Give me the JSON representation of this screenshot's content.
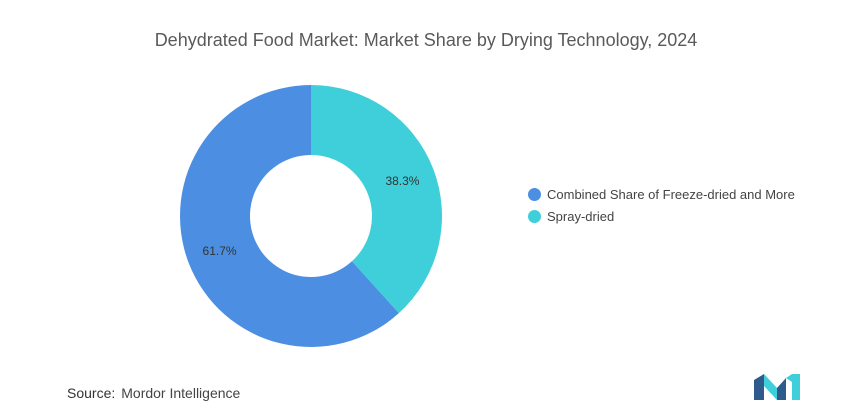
{
  "chart_data": {
    "type": "pie",
    "title": "Dehydrated Food Market: Market Share by Drying Technology, 2024",
    "categories": [
      "Combined Share of Freeze-dried and More",
      "Spray-dried"
    ],
    "values": [
      61.7,
      38.3
    ],
    "data_labels": [
      "61.7%",
      "38.3%"
    ],
    "colors": [
      "#4c8fe2",
      "#3fcfda"
    ],
    "hole": true,
    "legend_position": "right"
  },
  "source": {
    "label": "Source:",
    "text": "Mordor Intelligence"
  },
  "logo": {
    "colors": [
      "#2e5a8c",
      "#3fcfda"
    ]
  }
}
